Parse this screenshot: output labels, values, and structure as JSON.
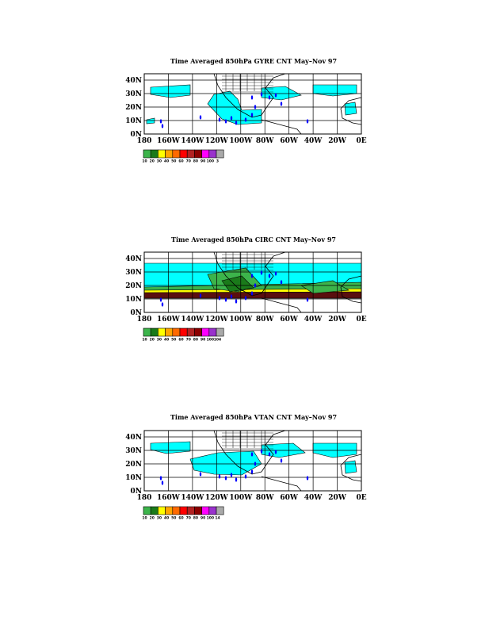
{
  "panels": [
    {
      "id": "gyre",
      "title": "Time Averaged 850hPa GYRE CNT May–Nov 97",
      "colorbar_labels": [
        "10",
        "20",
        "30",
        "40",
        "50",
        "60",
        "70",
        "80",
        "90",
        "100",
        "3"
      ]
    },
    {
      "id": "circ",
      "title": "Time Averaged 850hPa CIRC CNT May–Nov 97",
      "colorbar_labels": [
        "10",
        "20",
        "30",
        "40",
        "50",
        "60",
        "70",
        "80",
        "90",
        "100",
        "104"
      ]
    },
    {
      "id": "vtan",
      "title": "Time Averaged 850hPa VTAN CNT May–Nov 97",
      "colorbar_labels": [
        "10",
        "20",
        "30",
        "40",
        "50",
        "60",
        "70",
        "80",
        "90",
        "100",
        "14"
      ]
    }
  ],
  "axes": {
    "lat_ticks": [
      "40N",
      "30N",
      "20N",
      "10N",
      "0N"
    ],
    "lon_ticks": [
      "180",
      "160W",
      "140W",
      "120W",
      "100W",
      "80W",
      "60W",
      "40W",
      "20W",
      "0E"
    ]
  },
  "colorbar_colors": [
    "#3cb44b",
    "#1a7a1a",
    "#ffff00",
    "#ffa500",
    "#ff6a00",
    "#ff0000",
    "#b22222",
    "#8b0000",
    "#ff00ff",
    "#9932cc",
    "#a9a9a9"
  ],
  "shading": {
    "light_cyan": "#00ffff",
    "green": "#3cb44b",
    "dark_green": "#1a7a1a",
    "yellow": "#ffff00",
    "orange": "#ffa500",
    "dark_red": "#5a0f0f",
    "storm_marker": "#0000ff"
  }
}
